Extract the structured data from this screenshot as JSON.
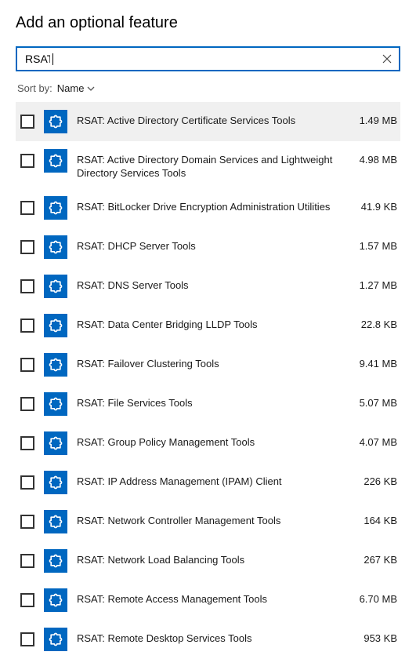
{
  "title": "Add an optional feature",
  "search": {
    "value": "RSAT",
    "placeholder": ""
  },
  "sort": {
    "label": "Sort by:",
    "value": "Name"
  },
  "colors": {
    "accent": "#0067c0",
    "hover_bg": "#f0f0f0",
    "text": "#1a1a1a",
    "border": "#333333"
  },
  "features": [
    {
      "name": "RSAT: Active Directory Certificate Services Tools",
      "size": "1.49 MB",
      "hover": true
    },
    {
      "name": "RSAT: Active Directory Domain Services and Lightweight Directory Services Tools",
      "size": "4.98 MB",
      "hover": false
    },
    {
      "name": "RSAT: BitLocker Drive Encryption Administration Utilities",
      "size": "41.9 KB",
      "hover": false
    },
    {
      "name": "RSAT: DHCP Server Tools",
      "size": "1.57 MB",
      "hover": false
    },
    {
      "name": "RSAT: DNS Server Tools",
      "size": "1.27 MB",
      "hover": false
    },
    {
      "name": "RSAT: Data Center Bridging LLDP Tools",
      "size": "22.8 KB",
      "hover": false
    },
    {
      "name": "RSAT: Failover Clustering Tools",
      "size": "9.41 MB",
      "hover": false
    },
    {
      "name": "RSAT: File Services Tools",
      "size": "5.07 MB",
      "hover": false
    },
    {
      "name": "RSAT: Group Policy Management Tools",
      "size": "4.07 MB",
      "hover": false
    },
    {
      "name": "RSAT: IP Address Management (IPAM) Client",
      "size": "226 KB",
      "hover": false
    },
    {
      "name": "RSAT: Network Controller Management Tools",
      "size": "164 KB",
      "hover": false
    },
    {
      "name": "RSAT: Network Load Balancing Tools",
      "size": "267 KB",
      "hover": false
    },
    {
      "name": "RSAT: Remote Access Management Tools",
      "size": "6.70 MB",
      "hover": false
    },
    {
      "name": "RSAT: Remote Desktop Services Tools",
      "size": "953 KB",
      "hover": false
    }
  ]
}
